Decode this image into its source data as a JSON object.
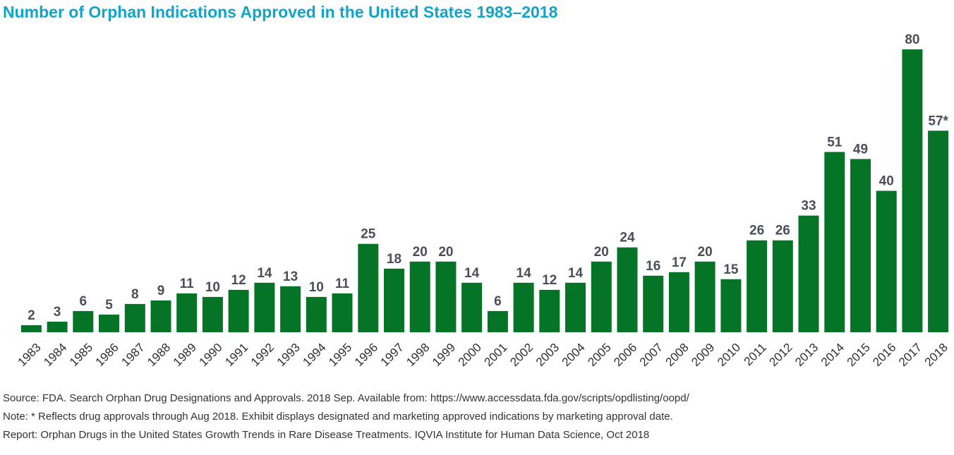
{
  "chart_data": {
    "type": "bar",
    "title": "Number of Orphan Indications Approved in the United States 1983–2018",
    "xlabel": "",
    "ylabel": "",
    "ylim": [
      0,
      80
    ],
    "grid": false,
    "categories": [
      "1983",
      "1984",
      "1985",
      "1986",
      "1987",
      "1988",
      "1989",
      "1990",
      "1991",
      "1992",
      "1993",
      "1994",
      "1995",
      "1996",
      "1997",
      "1998",
      "1999",
      "2000",
      "2001",
      "2002",
      "2003",
      "2004",
      "2005",
      "2006",
      "2007",
      "2008",
      "2009",
      "2010",
      "2011",
      "2012",
      "2013",
      "2014",
      "2015",
      "2016",
      "2017",
      "2018"
    ],
    "values": [
      2,
      3,
      6,
      5,
      8,
      9,
      11,
      10,
      12,
      14,
      13,
      10,
      11,
      25,
      18,
      20,
      20,
      14,
      6,
      14,
      12,
      14,
      20,
      24,
      16,
      17,
      20,
      15,
      26,
      26,
      33,
      51,
      49,
      40,
      80,
      57
    ],
    "data_labels": [
      "2",
      "3",
      "6",
      "5",
      "8",
      "9",
      "11",
      "10",
      "12",
      "14",
      "13",
      "10",
      "11",
      "25",
      "18",
      "20",
      "20",
      "14",
      "6",
      "14",
      "12",
      "14",
      "20",
      "24",
      "16",
      "17",
      "20",
      "15",
      "26",
      "26",
      "33",
      "51",
      "49",
      "40",
      "80",
      "57*"
    ],
    "bar_color": "#067426"
  },
  "title_color": "#12a3c8",
  "footnotes": {
    "source": "Source: FDA. Search Orphan Drug Designations and Approvals. 2018 Sep. Available from: https://www.accessdata.fda.gov/scripts/opdlisting/oopd/",
    "note": "Note: * Reflects drug approvals through Aug 2018. Exhibit displays designated and marketing approved indications by marketing approval date.",
    "report": "Report: Orphan Drugs in the United States Growth Trends in Rare Disease Treatments. IQVIA Institute for Human Data Science, Oct 2018"
  }
}
